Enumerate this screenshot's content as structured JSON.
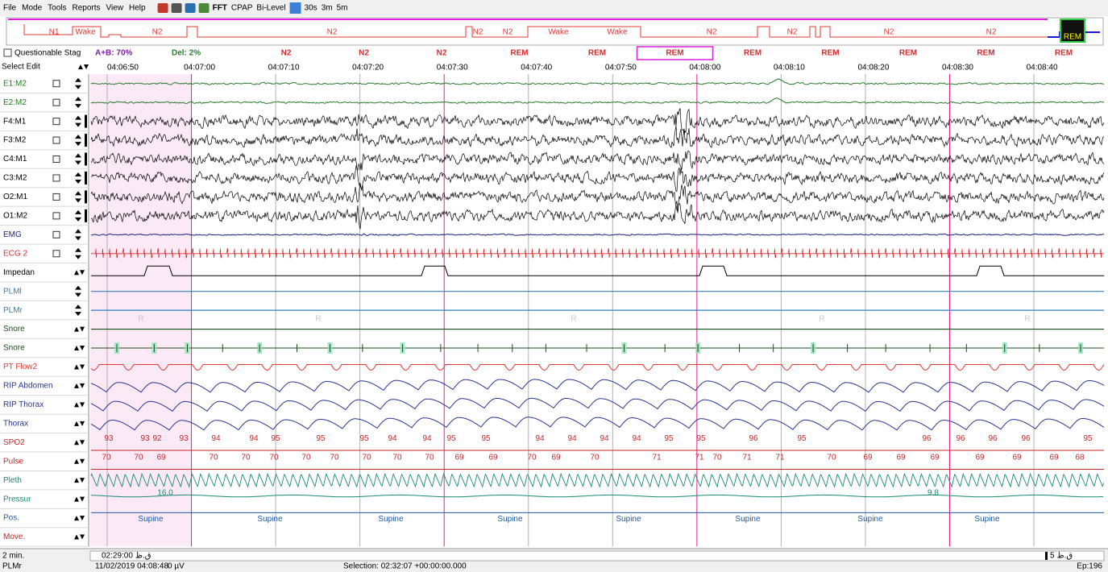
{
  "menu": [
    "File",
    "Mode",
    "Tools",
    "Reports",
    "View",
    "Help"
  ],
  "toolbar": [
    "FFT",
    "CPAP",
    "Bi-Level",
    "30s",
    "3m",
    "5m"
  ],
  "hypnogram": {
    "labels": [
      "N1",
      "Wake",
      "N2",
      "N2",
      "N2",
      "N2",
      "Wake",
      "Wake",
      "N2",
      "N2",
      "N2",
      "N2",
      "REM"
    ]
  },
  "status": {
    "questionable": "Questionable Stag",
    "ab": "A+B: 70%",
    "del": "Del: 2%",
    "stages": [
      "N2",
      "N2",
      "N2",
      "REM",
      "REM",
      "REM",
      "REM",
      "REM",
      "REM",
      "REM",
      "REM"
    ]
  },
  "time_row": {
    "label": "Select Edit",
    "times": [
      "04:06:50",
      "04:07:00",
      "04:07:10",
      "04:07:20",
      "04:07:30",
      "04:07:40",
      "04:07:50",
      "04:08:00",
      "04:08:10",
      "04:08:20",
      "04:08:30",
      "04:08:40"
    ]
  },
  "channels": [
    {
      "name": "E1:M2",
      "color": "#1f7a1f"
    },
    {
      "name": "E2:M2",
      "color": "#1f7a1f"
    },
    {
      "name": "F4:M1",
      "color": "#000000"
    },
    {
      "name": "F3:M2",
      "color": "#000000"
    },
    {
      "name": "C4:M1",
      "color": "#000000"
    },
    {
      "name": "C3:M2",
      "color": "#000000"
    },
    {
      "name": "O2:M1",
      "color": "#000000"
    },
    {
      "name": "O1:M2",
      "color": "#000000"
    },
    {
      "name": "EMG",
      "color": "#1a237e"
    },
    {
      "name": "ECG 2",
      "color": "#d32f2f"
    },
    {
      "name": "Impedan",
      "color": "#000000"
    },
    {
      "name": "PLMl",
      "color": "#2f7fc1"
    },
    {
      "name": "PLMr",
      "color": "#2f7fc1"
    },
    {
      "name": "Snore",
      "color": "#1b4d1b"
    },
    {
      "name": "Snore",
      "color": "#1b4d1b"
    },
    {
      "name": "PT Flow2",
      "color": "#e53935"
    },
    {
      "name": "RIP Abdomen",
      "color": "#283593"
    },
    {
      "name": "RIP Thorax",
      "color": "#283593"
    },
    {
      "name": "Thorax",
      "color": "#283593"
    },
    {
      "name": "SPO2",
      "color": "#c62828"
    },
    {
      "name": "Pulse",
      "color": "#c62828"
    },
    {
      "name": "Pleth",
      "color": "#1a8a73"
    },
    {
      "name": "Pressur",
      "color": "#1a8a73"
    },
    {
      "name": "Pos.",
      "color": "#1e5aa8"
    },
    {
      "name": "Move.",
      "color": "#c62828"
    }
  ],
  "watermarks": [
    "R",
    "R",
    "R",
    "R",
    "R"
  ],
  "spo2_values": [
    93,
    93,
    92,
    93,
    94,
    94,
    95,
    95,
    95,
    94,
    94,
    95,
    95,
    94,
    94,
    94,
    94,
    95,
    95,
    96,
    95,
    96,
    96,
    96,
    96,
    95
  ],
  "pulse_values": [
    70,
    70,
    69,
    70,
    70,
    70,
    70,
    70,
    70,
    70,
    70,
    69,
    69,
    70,
    69,
    70,
    71,
    71,
    70,
    71,
    71,
    70,
    69,
    69,
    69,
    69,
    69,
    69,
    68
  ],
  "pressure_values": [
    "16.0",
    "9.8"
  ],
  "positions": [
    "Supine",
    "Supine",
    "Supine",
    "Supine",
    "Supine",
    "Supine",
    "Supine",
    "Supine"
  ],
  "footer": {
    "window": "2 min.",
    "scroll_time": "02:29:00 ق.ظ",
    "scroll_end": "5 ق.ظ",
    "channel": "PLMr",
    "datetime": "11/02/2019 04:08:48",
    "amplitude": "0 µV",
    "selection": "Selection: 02:32:07 +00:00:00.000",
    "epoch": "Ep:196"
  }
}
